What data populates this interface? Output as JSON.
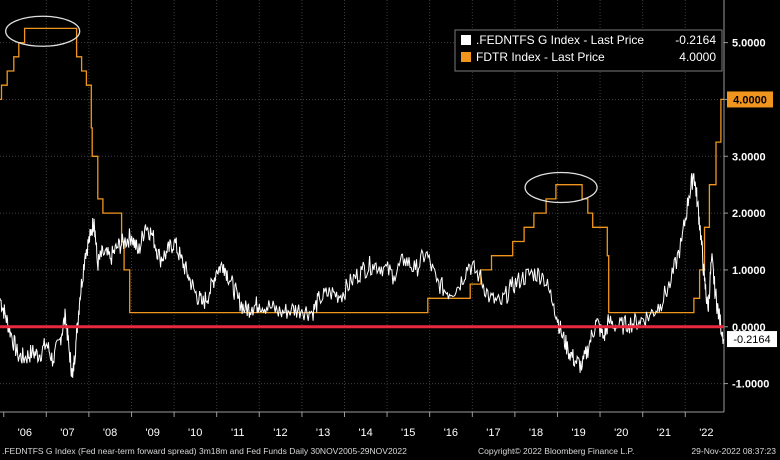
{
  "chart_data": {
    "type": "line",
    "title": "",
    "xlabel": "",
    "ylabel": "",
    "x_ticks": [
      "'06",
      "'07",
      "'08",
      "'09",
      "'10",
      "'11",
      "'12",
      "'13",
      "'14",
      "'15",
      "'16",
      "'17",
      "'18",
      "'19",
      "'20",
      "'21",
      "'22"
    ],
    "x_tick_years": [
      2006,
      2007,
      2008,
      2009,
      2010,
      2011,
      2012,
      2013,
      2014,
      2015,
      2016,
      2017,
      2018,
      2019,
      2020,
      2021,
      2022
    ],
    "xlim": [
      "2005-11-30",
      "2022-11-29"
    ],
    "y_ticks": [
      "5.0000",
      "4.0000",
      "3.0000",
      "2.0000",
      "1.0000",
      "0.0000",
      "-1.0000"
    ],
    "ylim": [
      -1.5,
      5.75
    ],
    "grid": true,
    "legend_position": "top-right",
    "colors": {
      "spread": "#ffffff",
      "fedfunds": "#f0961e",
      "zero_line": "#e8283c",
      "grid": "#3c3c3c",
      "tag_orange": "#f0961e"
    },
    "series": [
      {
        "name": ".FEDNTFS G Index - Last Price",
        "last_value": "-0.2164",
        "color": "#ffffff",
        "points": [
          [
            "2005-11-30",
            0.5
          ],
          [
            "2006-01-15",
            0.2
          ],
          [
            "2006-03-01",
            -0.1
          ],
          [
            "2006-05-01",
            -0.5
          ],
          [
            "2006-07-01",
            -0.55
          ],
          [
            "2006-09-01",
            -0.45
          ],
          [
            "2006-11-01",
            -0.5
          ],
          [
            "2007-01-01",
            -0.3
          ],
          [
            "2007-03-01",
            -0.6
          ],
          [
            "2007-05-01",
            -0.2
          ],
          [
            "2007-06-15",
            0.2
          ],
          [
            "2007-07-15",
            -0.4
          ],
          [
            "2007-08-15",
            -0.9
          ],
          [
            "2007-09-15",
            -0.2
          ],
          [
            "2007-10-15",
            0.5
          ],
          [
            "2007-12-01",
            1.3
          ],
          [
            "2008-01-15",
            1.6
          ],
          [
            "2008-02-15",
            1.9
          ],
          [
            "2008-03-15",
            1.1
          ],
          [
            "2008-05-01",
            1.3
          ],
          [
            "2008-07-01",
            1.2
          ],
          [
            "2008-09-01",
            1.4
          ],
          [
            "2008-11-01",
            1.5
          ],
          [
            "2009-01-01",
            1.6
          ],
          [
            "2009-03-01",
            1.3
          ],
          [
            "2009-05-01",
            1.8
          ],
          [
            "2009-07-01",
            1.6
          ],
          [
            "2009-09-01",
            1.2
          ],
          [
            "2009-11-01",
            1.3
          ],
          [
            "2010-01-01",
            1.5
          ],
          [
            "2010-03-01",
            1.2
          ],
          [
            "2010-05-01",
            0.9
          ],
          [
            "2010-07-01",
            0.6
          ],
          [
            "2010-09-01",
            0.4
          ],
          [
            "2010-11-01",
            0.6
          ],
          [
            "2011-01-01",
            1.0
          ],
          [
            "2011-03-01",
            1.1
          ],
          [
            "2011-05-01",
            0.8
          ],
          [
            "2011-07-01",
            0.5
          ],
          [
            "2011-09-01",
            0.3
          ],
          [
            "2011-11-01",
            0.35
          ],
          [
            "2012-01-01",
            0.4
          ],
          [
            "2012-04-01",
            0.35
          ],
          [
            "2012-07-01",
            0.25
          ],
          [
            "2012-10-01",
            0.3
          ],
          [
            "2013-01-01",
            0.3
          ],
          [
            "2013-04-01",
            0.25
          ],
          [
            "2013-06-01",
            0.5
          ],
          [
            "2013-09-01",
            0.6
          ],
          [
            "2013-12-01",
            0.55
          ],
          [
            "2014-03-01",
            0.8
          ],
          [
            "2014-06-01",
            1.0
          ],
          [
            "2014-09-01",
            1.1
          ],
          [
            "2014-12-01",
            1.05
          ],
          [
            "2015-03-01",
            0.9
          ],
          [
            "2015-06-01",
            1.2
          ],
          [
            "2015-09-01",
            1.0
          ],
          [
            "2015-12-01",
            1.3
          ],
          [
            "2016-03-01",
            0.8
          ],
          [
            "2016-06-01",
            0.6
          ],
          [
            "2016-09-01",
            0.7
          ],
          [
            "2016-12-01",
            1.1
          ],
          [
            "2017-03-01",
            0.9
          ],
          [
            "2017-06-01",
            0.5
          ],
          [
            "2017-09-01",
            0.4
          ],
          [
            "2017-12-01",
            0.7
          ],
          [
            "2018-03-01",
            0.85
          ],
          [
            "2018-06-01",
            0.95
          ],
          [
            "2018-09-01",
            0.9
          ],
          [
            "2018-12-01",
            0.4
          ],
          [
            "2019-02-01",
            -0.1
          ],
          [
            "2019-04-01",
            -0.4
          ],
          [
            "2019-06-01",
            -0.6
          ],
          [
            "2019-08-01",
            -0.7
          ],
          [
            "2019-10-01",
            -0.3
          ],
          [
            "2019-12-01",
            0.1
          ],
          [
            "2020-02-01",
            -0.2
          ],
          [
            "2020-03-15",
            0.1
          ],
          [
            "2020-06-01",
            0.0
          ],
          [
            "2020-09-01",
            0.05
          ],
          [
            "2020-12-01",
            0.1
          ],
          [
            "2021-03-01",
            0.2
          ],
          [
            "2021-06-01",
            0.4
          ],
          [
            "2021-09-01",
            0.8
          ],
          [
            "2021-12-01",
            1.5
          ],
          [
            "2022-02-01",
            2.3
          ],
          [
            "2022-03-15",
            2.7
          ],
          [
            "2022-04-15",
            2.2
          ],
          [
            "2022-05-15",
            1.6
          ],
          [
            "2022-06-15",
            0.8
          ],
          [
            "2022-07-15",
            0.3
          ],
          [
            "2022-08-15",
            1.2
          ],
          [
            "2022-09-15",
            0.6
          ],
          [
            "2022-10-15",
            0.2
          ],
          [
            "2022-11-29",
            -0.2164
          ]
        ]
      },
      {
        "name": "FDTR Index - Last Price",
        "last_value": "4.0000",
        "color": "#f0961e",
        "points": [
          [
            "2005-11-30",
            4.0
          ],
          [
            "2005-12-13",
            4.25
          ],
          [
            "2006-01-31",
            4.5
          ],
          [
            "2006-03-28",
            4.75
          ],
          [
            "2006-05-10",
            5.0
          ],
          [
            "2006-06-29",
            5.25
          ],
          [
            "2007-09-18",
            4.75
          ],
          [
            "2007-10-31",
            4.5
          ],
          [
            "2007-12-11",
            4.25
          ],
          [
            "2008-01-22",
            3.5
          ],
          [
            "2008-01-30",
            3.0
          ],
          [
            "2008-03-18",
            2.25
          ],
          [
            "2008-04-30",
            2.0
          ],
          [
            "2008-10-08",
            1.5
          ],
          [
            "2008-10-29",
            1.0
          ],
          [
            "2008-12-16",
            0.25
          ],
          [
            "2015-12-16",
            0.5
          ],
          [
            "2016-12-14",
            0.75
          ],
          [
            "2017-03-15",
            1.0
          ],
          [
            "2017-06-14",
            1.25
          ],
          [
            "2017-12-13",
            1.5
          ],
          [
            "2018-03-21",
            1.75
          ],
          [
            "2018-06-13",
            2.0
          ],
          [
            "2018-09-26",
            2.25
          ],
          [
            "2018-12-19",
            2.5
          ],
          [
            "2019-07-31",
            2.25
          ],
          [
            "2019-09-18",
            2.0
          ],
          [
            "2019-10-30",
            1.75
          ],
          [
            "2020-03-03",
            1.25
          ],
          [
            "2020-03-15",
            0.25
          ],
          [
            "2022-03-16",
            0.5
          ],
          [
            "2022-05-04",
            1.0
          ],
          [
            "2022-06-15",
            1.75
          ],
          [
            "2022-07-27",
            2.5
          ],
          [
            "2022-09-21",
            3.25
          ],
          [
            "2022-11-02",
            4.0
          ],
          [
            "2022-11-29",
            4.0
          ]
        ]
      }
    ]
  },
  "footer": {
    "left": ".FEDNTFS G Index (Fed near-term forward spread) 3m18m and Fed Funds  Daily 30NOV2005-29NOV2022",
    "middle": "Copyright© 2022 Bloomberg Finance L.P.",
    "right": "29-Nov-2022 08:37:23"
  }
}
